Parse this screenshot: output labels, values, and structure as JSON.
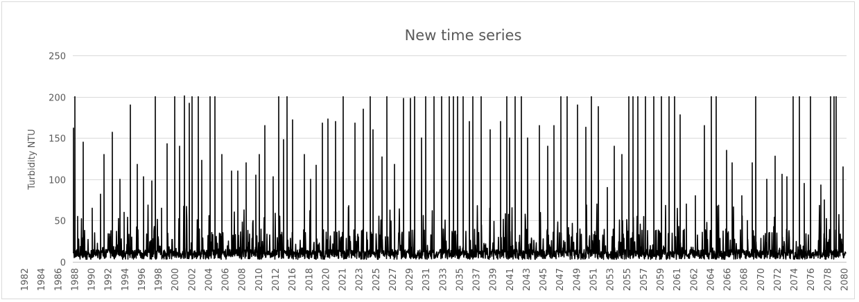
{
  "chart_data": {
    "type": "line",
    "title": "New time series",
    "xlabel": "",
    "ylabel": "Turbidity NTU",
    "ylim": [
      0,
      250
    ],
    "yticks": [
      0,
      50,
      100,
      150,
      200,
      250
    ],
    "ytick_labels": [
      "0",
      "50",
      "100",
      "150",
      "200",
      "250"
    ],
    "xlim": [
      1982.0,
      2080.6
    ],
    "xtick_labels": [
      "1982",
      "1984",
      "1986",
      "1988",
      "1990",
      "1992",
      "1994",
      "1996",
      "1998",
      "2000",
      "2002",
      "2004",
      "2006",
      "2008",
      "2010",
      "2012",
      "2016",
      "2018",
      "2020",
      "2021",
      "2023",
      "2025",
      "2027",
      "2029",
      "2031",
      "2033",
      "2035",
      "2037",
      "2039",
      "2041",
      "2043",
      "2045",
      "2047",
      "2049",
      "2051",
      "2053",
      "2055",
      "2057",
      "2059",
      "2061",
      "2062",
      "2064",
      "2066",
      "2068",
      "2070",
      "2072",
      "2074",
      "2076",
      "2078",
      "2080"
    ],
    "grid": true,
    "legend": "none",
    "series_color": "#000000",
    "series": [
      {
        "x": [
          1982.1,
          1982.3,
          1982.6,
          1983.3,
          1984.5,
          1985.5,
          1986.0,
          1987.0,
          1988.0,
          1988.5,
          1989.3,
          1990.2,
          1991.0,
          1992.1,
          1992.5,
          1993.3,
          1994.0,
          1995.0,
          1995.6,
          1996.2,
          1996.8,
          1997.2,
          1998.0,
          1998.4,
          1999.5,
          2000.1,
          2001.0,
          2002.2,
          2003.0,
          2004.1,
          2005.3,
          2005.8,
          2006.5,
          2007.5,
          2008.2,
          2008.9,
          2009.3,
          2010.0,
          2011.5,
          2012.3,
          2013.0,
          2013.8,
          2014.5,
          2015.5,
          2016.5,
          2017.2,
          2018.0,
          2019.0,
          2019.9,
          2020.3,
          2021.4,
          2022.0,
          2023.0,
          2024.1,
          2025.0,
          2025.6,
          2026.4,
          2027.0,
          2028.0,
          2029.0,
          2030.0,
          2030.5,
          2031.0,
          2031.7,
          2032.5,
          2033.0,
          2034.0,
          2035.2,
          2036.5,
          2037.3,
          2037.7,
          2038.4,
          2039.2,
          2040.0,
          2041.5,
          2042.5,
          2043.3,
          2044.2,
          2045.0,
          2046.3,
          2047.4,
          2048.1,
          2049.0,
          2050.1,
          2051.0,
          2052.0,
          2052.9,
          2053.4,
          2054.0,
          2055.0,
          2056.0,
          2057.0,
          2058.0,
          2058.7,
          2059.4,
          2060.2,
          2061.3,
          2062.5,
          2063.4,
          2064.0,
          2065.3,
          2066.0,
          2067.3,
          2068.0,
          2068.6,
          2069.0,
          2070.4,
          2071.5,
          2072.4,
          2073.0,
          2073.8,
          2074.6,
          2075.2,
          2076.0,
          2077.3,
          2077.8,
          2078.6,
          2079.0,
          2079.3,
          2080.2
        ],
        "y": [
          162,
          200,
          55,
          145,
          65,
          82,
          130,
          157,
          100,
          60,
          190,
          118,
          103,
          98,
          200,
          65,
          143,
          200,
          140,
          201,
          192,
          200,
          200,
          123,
          200,
          200,
          130,
          110,
          110,
          120,
          105,
          130,
          165,
          103,
          200,
          148,
          200,
          172,
          130,
          100,
          117,
          168,
          173,
          170,
          200,
          68,
          168,
          185,
          200,
          160,
          127,
          200,
          118,
          198,
          198,
          200,
          150,
          200,
          200,
          200,
          200,
          200,
          200,
          200,
          170,
          200,
          200,
          160,
          170,
          200,
          150,
          200,
          200,
          150,
          165,
          140,
          165,
          200,
          200,
          190,
          163,
          200,
          188,
          90,
          140,
          130,
          200,
          200,
          200,
          200,
          200,
          200,
          200,
          200,
          178,
          70,
          80,
          165,
          200,
          200,
          135,
          120,
          80,
          50,
          120,
          200,
          100,
          128,
          106,
          103,
          200,
          200,
          95,
          200,
          93,
          75,
          200,
          200,
          200,
          115
        ]
      }
    ]
  }
}
